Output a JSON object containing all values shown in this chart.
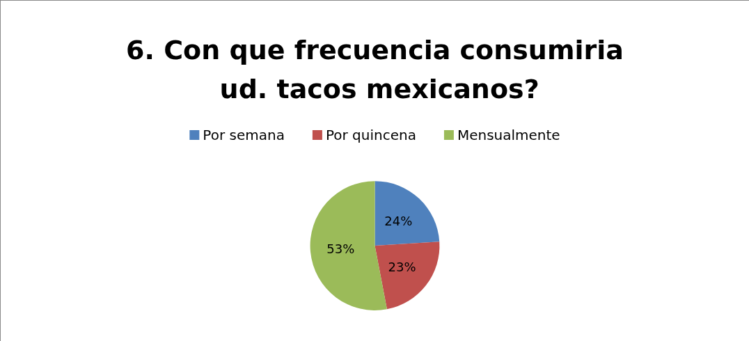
{
  "chart_data": {
    "type": "pie",
    "title": "6. Con que frecuencia consumiria ud. tacos mexicanos?",
    "categories": [
      "Por semana",
      "Por quincena",
      "Mensualmente"
    ],
    "values": [
      24,
      23,
      53
    ],
    "colors": [
      "#4f81bd",
      "#c0504d",
      "#9bbb59"
    ],
    "value_labels": [
      "24%",
      "23%",
      "53%"
    ],
    "legend": "top"
  }
}
